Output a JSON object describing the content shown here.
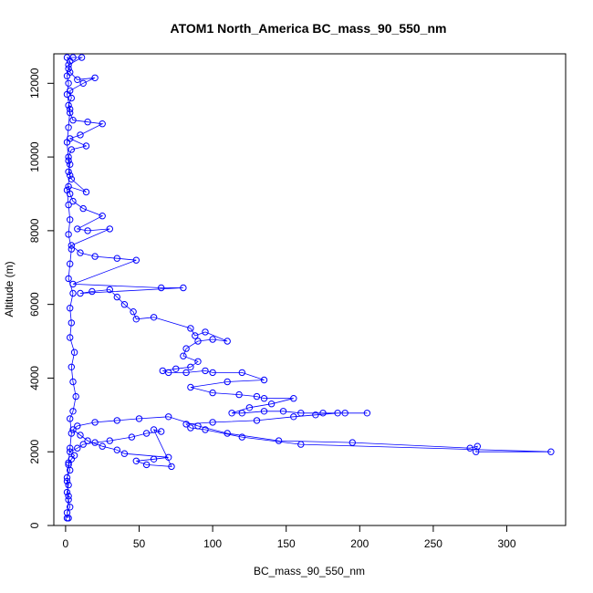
{
  "chart_data": {
    "type": "scatter",
    "title": "ATOM1 North_America BC_mass_90_550_nm",
    "xlabel": "BC_mass_90_550_nm",
    "ylabel": "Altitude (m)",
    "xlim": [
      -8,
      340
    ],
    "ylim": [
      0,
      12800
    ],
    "xticks": [
      0,
      50,
      100,
      150,
      200,
      250,
      300
    ],
    "xtick_labels": [
      "0",
      "50",
      "100",
      "150",
      "200",
      "250",
      "300"
    ],
    "yticks": [
      0,
      2000,
      4000,
      6000,
      8000,
      10000,
      12000
    ],
    "ytick_labels": [
      "0",
      "2000",
      "4000",
      "6000",
      "8000",
      "10000",
      "12000"
    ],
    "series": [
      {
        "name": "BC_mass_90_550_nm",
        "color": "#0000ff",
        "points": [
          [
            2,
            200
          ],
          [
            1,
            350
          ],
          [
            3,
            500
          ],
          [
            2,
            700
          ],
          [
            1,
            900
          ],
          [
            2,
            1100
          ],
          [
            1,
            1300
          ],
          [
            3,
            1500
          ],
          [
            2,
            1650
          ],
          [
            4,
            1800
          ],
          [
            6,
            1900
          ],
          [
            3,
            2000
          ],
          [
            8,
            2100
          ],
          [
            12,
            2200
          ],
          [
            20,
            2250
          ],
          [
            30,
            2300
          ],
          [
            45,
            2400
          ],
          [
            55,
            2500
          ],
          [
            65,
            2550
          ],
          [
            60,
            2600
          ],
          [
            72,
            1600
          ],
          [
            55,
            1650
          ],
          [
            48,
            1750
          ],
          [
            60,
            1800
          ],
          [
            70,
            1850
          ],
          [
            40,
            1950
          ],
          [
            35,
            2050
          ],
          [
            25,
            2150
          ],
          [
            15,
            2300
          ],
          [
            10,
            2450
          ],
          [
            5,
            2600
          ],
          [
            8,
            2700
          ],
          [
            20,
            2800
          ],
          [
            35,
            2850
          ],
          [
            50,
            2900
          ],
          [
            70,
            2950
          ],
          [
            90,
            2700
          ],
          [
            110,
            2500
          ],
          [
            145,
            2300
          ],
          [
            195,
            2250
          ],
          [
            275,
            2100
          ],
          [
            280,
            2150
          ],
          [
            279,
            2000
          ],
          [
            330,
            2000
          ],
          [
            160,
            2200
          ],
          [
            120,
            2400
          ],
          [
            95,
            2600
          ],
          [
            85,
            2650
          ],
          [
            82,
            2750
          ],
          [
            100,
            2800
          ],
          [
            130,
            2850
          ],
          [
            155,
            2950
          ],
          [
            170,
            3000
          ],
          [
            185,
            3050
          ],
          [
            205,
            3050
          ],
          [
            190,
            3050
          ],
          [
            175,
            3050
          ],
          [
            160,
            3050
          ],
          [
            148,
            3100
          ],
          [
            135,
            3100
          ],
          [
            120,
            3050
          ],
          [
            113,
            3050
          ],
          [
            125,
            3200
          ],
          [
            140,
            3300
          ],
          [
            155,
            3450
          ],
          [
            135,
            3450
          ],
          [
            130,
            3500
          ],
          [
            118,
            3550
          ],
          [
            100,
            3600
          ],
          [
            85,
            3750
          ],
          [
            110,
            3900
          ],
          [
            135,
            3950
          ],
          [
            120,
            4150
          ],
          [
            100,
            4150
          ],
          [
            95,
            4200
          ],
          [
            82,
            4150
          ],
          [
            70,
            4150
          ],
          [
            66,
            4200
          ],
          [
            75,
            4250
          ],
          [
            85,
            4300
          ],
          [
            90,
            4450
          ],
          [
            80,
            4600
          ],
          [
            82,
            4800
          ],
          [
            90,
            5000
          ],
          [
            100,
            5050
          ],
          [
            110,
            5000
          ],
          [
            95,
            5250
          ],
          [
            88,
            5150
          ],
          [
            85,
            5350
          ],
          [
            60,
            5650
          ],
          [
            48,
            5600
          ],
          [
            46,
            5800
          ],
          [
            40,
            6000
          ],
          [
            35,
            6200
          ],
          [
            30,
            6400
          ],
          [
            18,
            6350
          ],
          [
            10,
            6300
          ],
          [
            80,
            6450
          ],
          [
            65,
            6450
          ],
          [
            5,
            6550
          ],
          [
            48,
            7200
          ],
          [
            35,
            7250
          ],
          [
            20,
            7300
          ],
          [
            10,
            7400
          ],
          [
            4,
            7600
          ],
          [
            30,
            8050
          ],
          [
            15,
            8000
          ],
          [
            8,
            8050
          ],
          [
            25,
            8400
          ],
          [
            12,
            8600
          ],
          [
            5,
            8800
          ],
          [
            3,
            9000
          ],
          [
            2,
            9200
          ],
          [
            14,
            9050
          ],
          [
            4,
            9400
          ],
          [
            2,
            9600
          ],
          [
            3,
            9800
          ],
          [
            2,
            10000
          ],
          [
            4,
            10200
          ],
          [
            14,
            10300
          ],
          [
            3,
            10500
          ],
          [
            10,
            10600
          ],
          [
            25,
            10900
          ],
          [
            15,
            10950
          ],
          [
            5,
            11000
          ],
          [
            3,
            11200
          ],
          [
            2,
            11400
          ],
          [
            4,
            11600
          ],
          [
            3,
            11800
          ],
          [
            12,
            12000
          ],
          [
            20,
            12150
          ],
          [
            8,
            12100
          ],
          [
            3,
            12300
          ],
          [
            2,
            12500
          ],
          [
            11,
            12700
          ],
          [
            5,
            12700
          ],
          [
            1,
            12700
          ],
          [
            3,
            12600
          ],
          [
            2,
            12400
          ],
          [
            1,
            12200
          ],
          [
            2,
            12000
          ],
          [
            1,
            11700
          ],
          [
            3,
            11300
          ],
          [
            2,
            10800
          ],
          [
            1,
            10400
          ],
          [
            2,
            9900
          ],
          [
            3,
            9500
          ],
          [
            1,
            9100
          ],
          [
            2,
            8700
          ],
          [
            3,
            8300
          ],
          [
            2,
            7900
          ],
          [
            4,
            7500
          ],
          [
            3,
            7100
          ],
          [
            2,
            6700
          ],
          [
            5,
            6300
          ],
          [
            3,
            5900
          ],
          [
            4,
            5500
          ],
          [
            3,
            5100
          ],
          [
            6,
            4700
          ],
          [
            4,
            4300
          ],
          [
            5,
            3900
          ],
          [
            7,
            3500
          ],
          [
            5,
            3100
          ],
          [
            3,
            2900
          ],
          [
            4,
            2500
          ],
          [
            3,
            2100
          ],
          [
            2,
            1700
          ],
          [
            1,
            1200
          ],
          [
            2,
            800
          ],
          [
            1,
            200
          ]
        ]
      }
    ]
  }
}
